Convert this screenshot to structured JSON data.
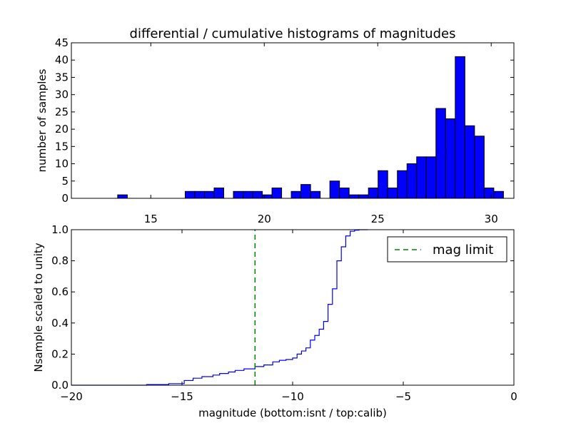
{
  "title": "differential / cumulative histograms of magnitudes",
  "chart_data": [
    {
      "type": "bar",
      "subtype": "histogram",
      "title": "differential / cumulative histograms of magnitudes",
      "xlabel": "",
      "ylabel": "number of samples",
      "xlim": [
        11.5,
        31.0
      ],
      "ylim": [
        0,
        45
      ],
      "xticks": [
        15,
        20,
        25,
        30
      ],
      "yticks": [
        0,
        5,
        10,
        15,
        20,
        25,
        30,
        35,
        40,
        45
      ],
      "bin_width": 0.425,
      "bin_start": 13.54,
      "values": [
        1,
        0,
        0,
        0,
        0,
        0,
        0,
        2,
        2,
        2,
        3,
        0,
        2,
        2,
        2,
        1,
        3,
        0,
        2,
        4,
        2,
        0,
        5,
        3,
        1,
        1,
        3,
        8,
        3,
        8,
        10,
        12,
        12,
        26,
        23,
        41,
        21,
        18,
        3,
        2
      ],
      "bar_color": "#0000ff",
      "xaxis_position": "top"
    },
    {
      "type": "line",
      "subtype": "cumulative-step",
      "title": "",
      "xlabel": "magnitude (bottom:isnt / top:calib)",
      "ylabel": "Nsample scaled to unity",
      "xlim": [
        -20,
        0
      ],
      "ylim": [
        0.0,
        1.0
      ],
      "xticks": [
        -20,
        -15,
        -10,
        -5,
        0
      ],
      "yticks": [
        0.0,
        0.2,
        0.4,
        0.6,
        0.8,
        1.0
      ],
      "series": [
        {
          "color": "#0000ff",
          "x": [
            -20.0,
            -16.6,
            -15.6,
            -14.9,
            -14.5,
            -14.1,
            -13.6,
            -13.3,
            -12.9,
            -12.6,
            -12.2,
            -11.7,
            -11.3,
            -10.9,
            -10.6,
            -10.3,
            -10.0,
            -9.8,
            -9.6,
            -9.4,
            -9.2,
            -9.0,
            -8.8,
            -8.6,
            -8.4,
            -8.2,
            -8.0,
            -7.8,
            -7.6,
            -7.4,
            -7.2,
            -7.0,
            -6.8,
            -6.6
          ],
          "y": [
            0.0,
            0.004,
            0.01,
            0.03,
            0.045,
            0.055,
            0.065,
            0.075,
            0.085,
            0.095,
            0.105,
            0.12,
            0.13,
            0.15,
            0.16,
            0.165,
            0.175,
            0.2,
            0.22,
            0.24,
            0.29,
            0.32,
            0.36,
            0.41,
            0.52,
            0.62,
            0.8,
            0.89,
            0.96,
            0.99,
            0.997,
            1.0,
            1.0,
            1.0
          ]
        },
        {
          "name": "mag limit",
          "color": "#008000",
          "style": "dashed",
          "x": [
            -11.7,
            -11.7
          ],
          "y": [
            0.0,
            1.0
          ]
        }
      ],
      "legend": {
        "entries": [
          "mag limit"
        ],
        "position": "top-right"
      }
    }
  ]
}
